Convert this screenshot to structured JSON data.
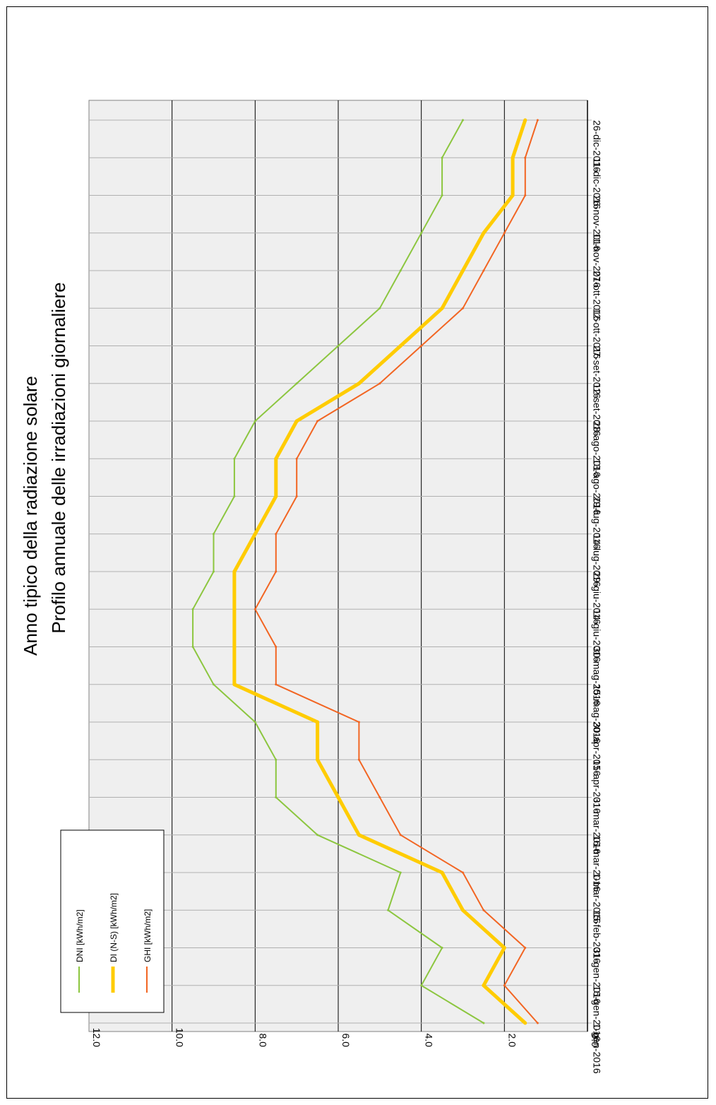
{
  "chart_data": {
    "type": "line",
    "title": "Anno tipico della radiazione solare",
    "subtitle": "Profilo annuale delle irradiazioni giornaliere",
    "orientation": "rotated-90",
    "ylim": [
      0,
      12
    ],
    "y_ticks": [
      "0.0",
      "2.0",
      "4.0",
      "6.0",
      "8.0",
      "10.0",
      "12.0"
    ],
    "x_ticks": [
      "1-gen-2016",
      "16-gen-2016",
      "31-gen-2016",
      "15-feb-2016",
      "1-mar-2016",
      "16-mar-2016",
      "31-mar-2016",
      "15-apr-2016",
      "30-apr-2016",
      "15-mag-2016",
      "30-mag-2016",
      "14-giu-2016",
      "29-giu-2016",
      "14-lug-2016",
      "29-lug-2016",
      "13-ago-2016",
      "28-ago-2016",
      "12-set-2016",
      "27-set-2016",
      "12-ott-2016",
      "27-ott-2016",
      "11-nov-2016",
      "26-nov-2016",
      "11-dic-2016",
      "26-dic-2016"
    ],
    "x": [
      "2016-01-01",
      "2016-01-16",
      "2016-01-31",
      "2016-02-15",
      "2016-03-01",
      "2016-03-16",
      "2016-03-31",
      "2016-04-15",
      "2016-04-30",
      "2016-05-15",
      "2016-05-30",
      "2016-06-14",
      "2016-06-29",
      "2016-07-14",
      "2016-07-29",
      "2016-08-13",
      "2016-08-28",
      "2016-09-12",
      "2016-09-27",
      "2016-10-12",
      "2016-10-27",
      "2016-11-11",
      "2016-11-26",
      "2016-12-11",
      "2016-12-26"
    ],
    "grid": true,
    "legend_position": "top-left",
    "series": [
      {
        "name": "DNI [kWh/m2]",
        "color": "#8cc63f",
        "values": [
          2.5,
          4.0,
          3.5,
          4.8,
          4.5,
          6.5,
          7.5,
          7.5,
          8.0,
          9.0,
          9.5,
          9.5,
          9.0,
          9.0,
          8.5,
          8.5,
          8.0,
          7.0,
          6.0,
          5.0,
          4.5,
          4.0,
          3.5,
          3.5,
          3.0
        ]
      },
      {
        "name": "DI (N-S) [kWh/m2]",
        "color": "#ffcc00",
        "values": [
          1.5,
          2.5,
          2.0,
          3.0,
          3.5,
          5.5,
          6.0,
          6.5,
          6.5,
          8.5,
          8.5,
          8.5,
          8.5,
          8.0,
          7.5,
          7.5,
          7.0,
          5.5,
          4.5,
          3.5,
          3.0,
          2.5,
          1.8,
          1.8,
          1.5
        ]
      },
      {
        "name": "GHI [kWh/m2]",
        "color": "#f26522",
        "values": [
          1.2,
          2.0,
          1.5,
          2.5,
          3.0,
          4.5,
          5.0,
          5.5,
          5.5,
          7.5,
          7.5,
          8.0,
          7.5,
          7.5,
          7.0,
          7.0,
          6.5,
          5.0,
          4.0,
          3.0,
          2.5,
          2.0,
          1.5,
          1.5,
          1.2
        ]
      }
    ]
  }
}
